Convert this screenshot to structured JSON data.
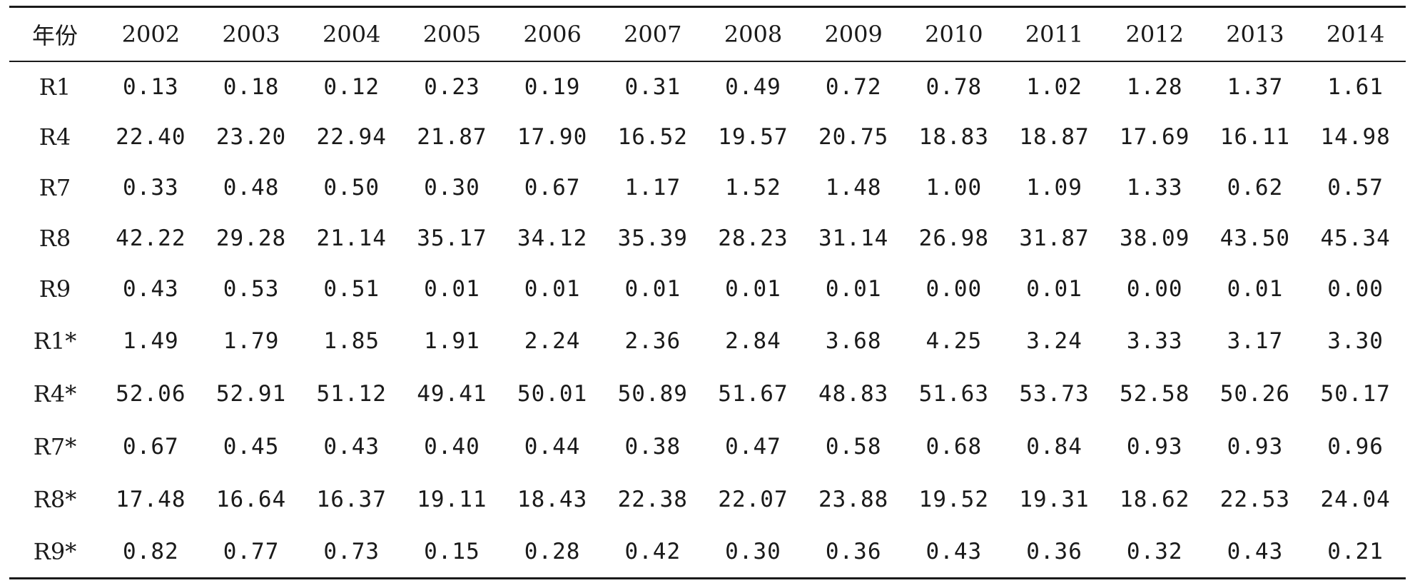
{
  "table": {
    "corner_header": "年份",
    "years": [
      "2002",
      "2003",
      "2004",
      "2005",
      "2006",
      "2007",
      "2008",
      "2009",
      "2010",
      "2011",
      "2012",
      "2013",
      "2014"
    ],
    "rows": [
      {
        "label": "R1",
        "values": [
          "0.13",
          "0.18",
          "0.12",
          "0.23",
          "0.19",
          "0.31",
          "0.49",
          "0.72",
          "0.78",
          "1.02",
          "1.28",
          "1.37",
          "1.61"
        ]
      },
      {
        "label": "R4",
        "values": [
          "22.40",
          "23.20",
          "22.94",
          "21.87",
          "17.90",
          "16.52",
          "19.57",
          "20.75",
          "18.83",
          "18.87",
          "17.69",
          "16.11",
          "14.98"
        ]
      },
      {
        "label": "R7",
        "values": [
          "0.33",
          "0.48",
          "0.50",
          "0.30",
          "0.67",
          "1.17",
          "1.52",
          "1.48",
          "1.00",
          "1.09",
          "1.33",
          "0.62",
          "0.57"
        ]
      },
      {
        "label": "R8",
        "values": [
          "42.22",
          "29.28",
          "21.14",
          "35.17",
          "34.12",
          "35.39",
          "28.23",
          "31.14",
          "26.98",
          "31.87",
          "38.09",
          "43.50",
          "45.34"
        ]
      },
      {
        "label": "R9",
        "values": [
          "0.43",
          "0.53",
          "0.51",
          "0.01",
          "0.01",
          "0.01",
          "0.01",
          "0.01",
          "0.00",
          "0.01",
          "0.00",
          "0.01",
          "0.00"
        ]
      },
      {
        "label": "R1*",
        "values": [
          "1.49",
          "1.79",
          "1.85",
          "1.91",
          "2.24",
          "2.36",
          "2.84",
          "3.68",
          "4.25",
          "3.24",
          "3.33",
          "3.17",
          "3.30"
        ]
      },
      {
        "label": "R4*",
        "values": [
          "52.06",
          "52.91",
          "51.12",
          "49.41",
          "50.01",
          "50.89",
          "51.67",
          "48.83",
          "51.63",
          "53.73",
          "52.58",
          "50.26",
          "50.17"
        ]
      },
      {
        "label": "R7*",
        "values": [
          "0.67",
          "0.45",
          "0.43",
          "0.40",
          "0.44",
          "0.38",
          "0.47",
          "0.58",
          "0.68",
          "0.84",
          "0.93",
          "0.93",
          "0.96"
        ]
      },
      {
        "label": "R8*",
        "values": [
          "17.48",
          "16.64",
          "16.37",
          "19.11",
          "18.43",
          "22.38",
          "22.07",
          "23.88",
          "19.52",
          "19.31",
          "18.62",
          "22.53",
          "24.04"
        ]
      },
      {
        "label": "R9*",
        "values": [
          "0.82",
          "0.77",
          "0.73",
          "0.15",
          "0.28",
          "0.42",
          "0.30",
          "0.36",
          "0.43",
          "0.36",
          "0.32",
          "0.43",
          "0.21"
        ]
      }
    ]
  }
}
